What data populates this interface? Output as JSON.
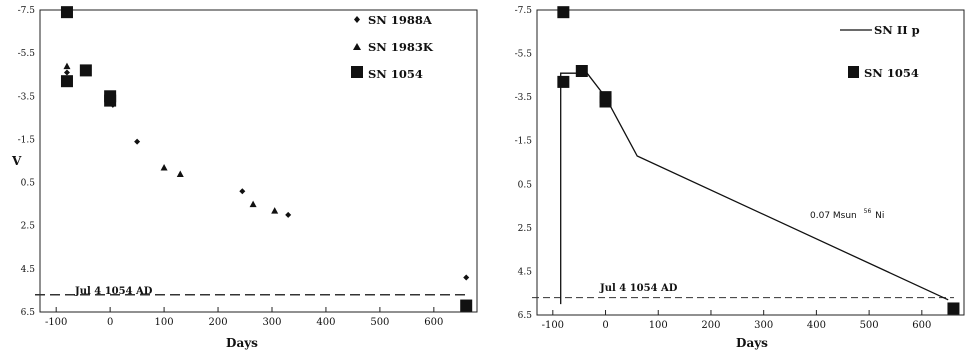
{
  "chart_data": [
    {
      "type": "scatter",
      "title": "",
      "xlabel": "Days",
      "ylabel": "V",
      "xlim": [
        -130,
        680
      ],
      "ylim": [
        -7.5,
        6.5
      ],
      "y_inverted": true,
      "xticks": [
        "-100",
        "0",
        "100",
        "200",
        "300",
        "400",
        "500",
        "600"
      ],
      "yticks": [
        "-7.5",
        "-5.5",
        "-3.5",
        "-1.5",
        "0.5",
        "2.5",
        "4.5",
        "6.5"
      ],
      "legend_position": "top-right",
      "series": [
        {
          "name": "SN 1988A",
          "marker": "diamond",
          "points": [
            [
              -80,
              -4.6
            ],
            [
              5,
              -3.1
            ],
            [
              50,
              -1.4
            ],
            [
              245,
              0.9
            ],
            [
              330,
              2.0
            ],
            [
              660,
              4.9
            ]
          ]
        },
        {
          "name": "SN 1983K",
          "marker": "triangle",
          "points": [
            [
              -80,
              -4.9
            ],
            [
              100,
              -0.2
            ],
            [
              130,
              0.1
            ],
            [
              265,
              1.5
            ],
            [
              305,
              1.8
            ]
          ]
        },
        {
          "name": "SN 1054",
          "marker": "square",
          "points": [
            [
              -80,
              -7.4
            ],
            [
              -80,
              -4.2
            ],
            [
              -45,
              -4.7
            ],
            [
              0,
              -3.3
            ],
            [
              0,
              -3.5
            ],
            [
              660,
              6.2
            ]
          ]
        }
      ],
      "annotations": [
        {
          "text": "Jul 4 1054 AD",
          "type": "dashed-horizontal-line",
          "y": 5.7
        }
      ]
    },
    {
      "type": "line",
      "title": "",
      "xlabel": "Days",
      "ylabel": "",
      "xlim": [
        -130,
        680
      ],
      "ylim": [
        -7.5,
        6.5
      ],
      "y_inverted": true,
      "xticks": [
        "-100",
        "0",
        "100",
        "200",
        "300",
        "400",
        "500",
        "600"
      ],
      "yticks": [
        "-7.5",
        "-5.5",
        "-3.5",
        "-1.5",
        "0.5",
        "2.5",
        "4.5",
        "6.5"
      ],
      "legend_position": "top-right",
      "series": [
        {
          "name": "SN II p",
          "marker": "line",
          "points": [
            [
              -85,
              6.0
            ],
            [
              -85,
              -4.6
            ],
            [
              -35,
              -4.6
            ],
            [
              0,
              -3.5
            ],
            [
              60,
              -0.8
            ],
            [
              650,
              5.8
            ]
          ]
        },
        {
          "name": "SN 1054",
          "marker": "square",
          "points": [
            [
              -80,
              -7.4
            ],
            [
              -80,
              -4.2
            ],
            [
              -45,
              -4.7
            ],
            [
              0,
              -3.3
            ],
            [
              0,
              -3.5
            ],
            [
              660,
              6.2
            ]
          ]
        }
      ],
      "annotations": [
        {
          "text": "Jul 4 1054 AD",
          "type": "dashed-horizontal-line",
          "y": 5.7
        },
        {
          "text": "0.07 Msun",
          "superscript": "56",
          "suffix": "Ni",
          "x": 420,
          "y": 2.2
        }
      ]
    }
  ]
}
